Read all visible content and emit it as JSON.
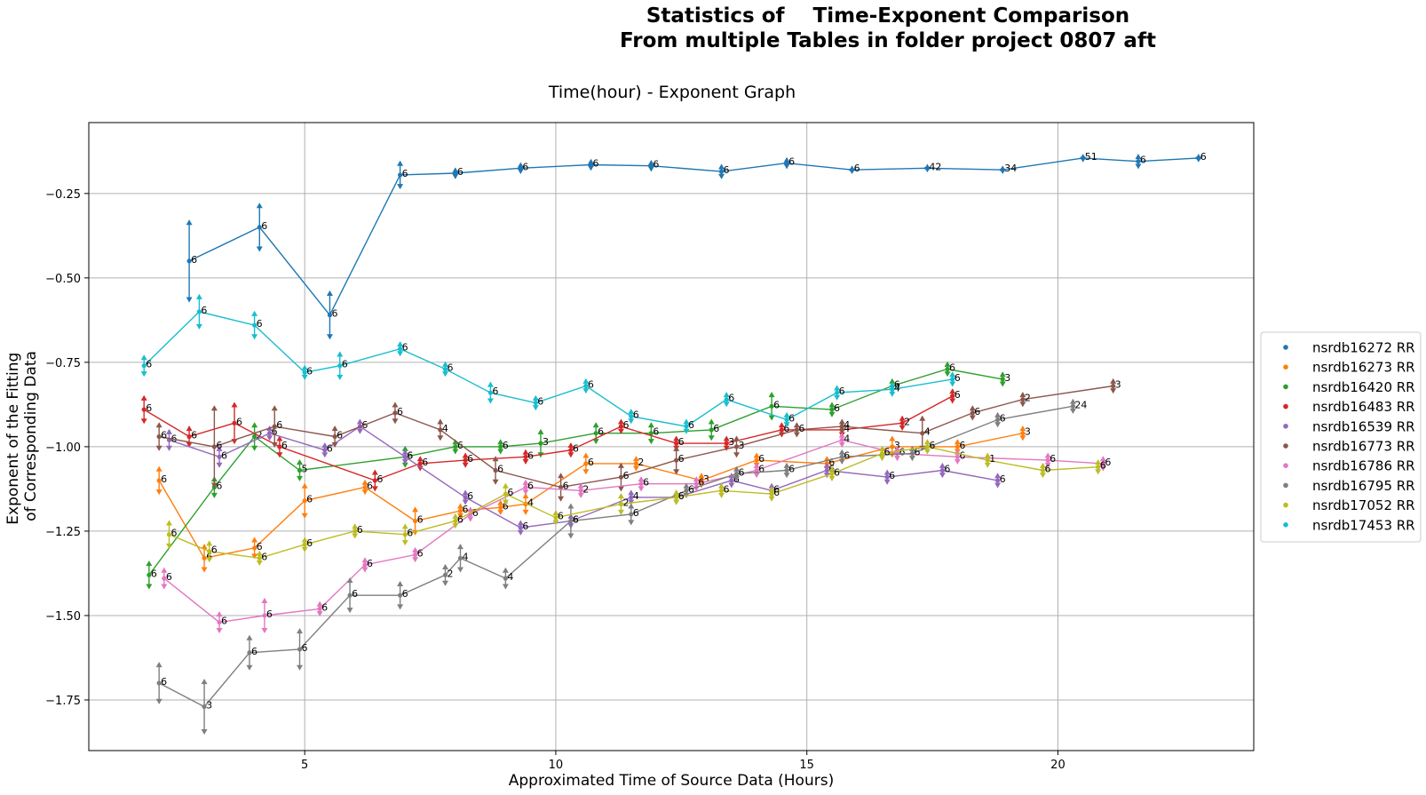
{
  "suptitle": {
    "line1": "Statistics of    Time-Exponent Comparison",
    "line2": "From multiple Tables in folder project 0807 aft"
  },
  "chart_data": {
    "type": "line",
    "title": "Time(hour) - Exponent Graph",
    "xlabel": "Approximated Time of Source Data (Hours)",
    "ylabel": "Exponent of the Fitting\nof Corresponding Data",
    "xlim": [
      0.7,
      23.9
    ],
    "ylim": [
      -1.9,
      -0.04
    ],
    "xticks": [
      5,
      10,
      15,
      20
    ],
    "yticks": [
      -0.25,
      -0.5,
      -0.75,
      -1.0,
      -1.25,
      -1.5,
      -1.75
    ],
    "ytick_labels": [
      "−0.25",
      "−0.50",
      "−0.75",
      "−1.00",
      "−1.25",
      "−1.50",
      "−1.75"
    ],
    "grid": true,
    "legend_position": "right-outside",
    "series": [
      {
        "name": "nsrdb16272 RR",
        "color": "#1f77b4",
        "x": [
          2.7,
          4.1,
          5.5,
          6.9,
          8.0,
          9.3,
          10.7,
          11.9,
          13.3,
          14.6,
          15.9,
          17.4,
          18.9,
          20.5,
          21.6,
          22.8
        ],
        "y": [
          -0.45,
          -0.35,
          -0.61,
          -0.195,
          -0.19,
          -0.175,
          -0.165,
          -0.168,
          -0.185,
          -0.16,
          -0.18,
          -0.175,
          -0.18,
          -0.145,
          -0.155,
          -0.145
        ],
        "err": [
          0.12,
          0.07,
          0.07,
          0.04,
          0.015,
          0.015,
          0.015,
          0.015,
          0.02,
          0.015,
          0.01,
          0.01,
          0.01,
          0.01,
          0.02,
          0.01
        ],
        "labels": [
          "6",
          "6",
          "6",
          "6",
          "6",
          "6",
          "6",
          "6",
          "6",
          "6",
          "6",
          "42",
          "34",
          "51",
          "6",
          "6"
        ]
      },
      {
        "name": "nsrdb16273 RR",
        "color": "#ff7f0e",
        "x": [
          2.1,
          3.0,
          4.0,
          5.0,
          6.2,
          7.2,
          8.1,
          8.9,
          9.4,
          10.6,
          11.6,
          12.9,
          14.0,
          15.4,
          16.7,
          18.0,
          19.3
        ],
        "y": [
          -1.1,
          -1.33,
          -1.3,
          -1.16,
          -1.12,
          -1.22,
          -1.19,
          -1.18,
          -1.17,
          -1.05,
          -1.05,
          -1.1,
          -1.04,
          -1.05,
          -1.0,
          -1.0,
          -0.96
        ],
        "err": [
          0.04,
          0.04,
          0.03,
          0.05,
          0.02,
          0.04,
          0.02,
          0.02,
          0.03,
          0.03,
          0.02,
          0.02,
          0.02,
          0.02,
          0.03,
          0.02,
          0.02
        ],
        "labels": [
          "6",
          "6",
          "6",
          "6",
          "6",
          "6",
          "6",
          "6",
          "4",
          "6",
          "2",
          "3",
          "6",
          "6",
          "3",
          "6",
          "3"
        ]
      },
      {
        "name": "nsrdb16420 RR",
        "color": "#2ca02c",
        "x": [
          1.9,
          3.2,
          4.0,
          4.9,
          7.0,
          8.0,
          8.9,
          9.7,
          10.8,
          11.9,
          13.1,
          14.3,
          15.5,
          16.7,
          17.8,
          18.9
        ],
        "y": [
          -1.38,
          -1.12,
          -0.97,
          -1.07,
          -1.03,
          -1.0,
          -1.0,
          -0.99,
          -0.96,
          -0.96,
          -0.95,
          -0.88,
          -0.89,
          -0.82,
          -0.77,
          -0.8
        ],
        "err": [
          0.04,
          0.03,
          0.04,
          0.03,
          0.03,
          0.02,
          0.02,
          0.04,
          0.03,
          0.03,
          0.03,
          0.04,
          0.02,
          0.02,
          0.02,
          0.02
        ],
        "labels": [
          "6",
          "6",
          "2",
          "5",
          "6",
          "6",
          "6",
          "3",
          "6",
          "6",
          "6",
          "6",
          "6",
          "6",
          "6",
          "3"
        ]
      },
      {
        "name": "nsrdb16483 RR",
        "color": "#d62728",
        "x": [
          1.8,
          2.7,
          3.6,
          4.5,
          6.4,
          7.3,
          8.2,
          9.4,
          10.3,
          11.3,
          12.4,
          13.4,
          14.5,
          15.7,
          16.9,
          17.9
        ],
        "y": [
          -0.89,
          -0.97,
          -0.93,
          -1.0,
          -1.1,
          -1.05,
          -1.04,
          -1.03,
          -1.01,
          -0.94,
          -0.99,
          -0.99,
          -0.95,
          -0.95,
          -0.93,
          -0.85
        ],
        "err": [
          0.04,
          0.03,
          0.06,
          0.03,
          0.03,
          0.02,
          0.02,
          0.02,
          0.02,
          0.02,
          0.02,
          0.02,
          0.02,
          0.02,
          0.02,
          0.02
        ],
        "labels": [
          "6",
          "6",
          "6",
          "6",
          "6",
          "6",
          "6",
          "6",
          "6",
          "6",
          "6",
          "3",
          "6",
          "4",
          "2",
          "6"
        ]
      },
      {
        "name": "nsrdb16539 RR",
        "color": "#9467bd",
        "x": [
          2.3,
          3.3,
          4.3,
          5.4,
          6.1,
          7.0,
          8.2,
          9.3,
          10.3,
          11.5,
          12.4,
          13.5,
          14.3,
          15.4,
          16.6,
          17.7,
          18.8
        ],
        "y": [
          -0.98,
          -1.03,
          -0.96,
          -1.01,
          -0.94,
          -1.03,
          -1.15,
          -1.24,
          -1.22,
          -1.15,
          -1.15,
          -1.1,
          -1.13,
          -1.07,
          -1.09,
          -1.07,
          -1.1
        ],
        "err": [
          0.03,
          0.03,
          0.02,
          0.02,
          0.02,
          0.02,
          0.02,
          0.02,
          0.02,
          0.02,
          0.02,
          0.02,
          0.02,
          0.02,
          0.02,
          0.02,
          0.02
        ],
        "labels": [
          "6",
          "6",
          "6",
          "6",
          "6",
          "6",
          "6",
          "6",
          "6",
          "4",
          "6",
          "6",
          "6",
          "6",
          "6",
          "6",
          "6"
        ]
      },
      {
        "name": "nsrdb16773 RR",
        "color": "#8c564b",
        "x": [
          2.1,
          3.2,
          4.4,
          5.6,
          6.8,
          7.7,
          8.8,
          10.1,
          11.3,
          12.4,
          13.6,
          14.8,
          15.7,
          17.3,
          18.3,
          19.3,
          21.1
        ],
        "y": [
          -0.97,
          -1.0,
          -0.94,
          -0.97,
          -0.9,
          -0.95,
          -1.07,
          -1.12,
          -1.09,
          -1.04,
          -1.0,
          -0.95,
          -0.94,
          -0.96,
          -0.9,
          -0.86,
          -0.82
        ],
        "err": [
          0.04,
          0.12,
          0.06,
          0.03,
          0.03,
          0.03,
          0.04,
          0.04,
          0.04,
          0.04,
          0.03,
          0.02,
          0.02,
          0.05,
          0.02,
          0.02,
          0.02
        ],
        "labels": [
          "6",
          "6",
          "6",
          "6",
          "6",
          "4",
          "6",
          "6",
          "6",
          "6",
          "3",
          "6",
          "4",
          "4",
          "6",
          "2",
          "3"
        ]
      },
      {
        "name": "nsrdb16786 RR",
        "color": "#e377c2",
        "x": [
          2.2,
          3.3,
          4.2,
          5.3,
          6.2,
          7.2,
          8.3,
          9.4,
          10.5,
          11.7,
          12.8,
          14.0,
          15.7,
          16.8,
          18.0,
          19.8,
          20.9
        ],
        "y": [
          -1.39,
          -1.52,
          -1.5,
          -1.48,
          -1.35,
          -1.32,
          -1.2,
          -1.12,
          -1.13,
          -1.11,
          -1.11,
          -1.07,
          -0.98,
          -1.02,
          -1.03,
          -1.04,
          -1.05
        ],
        "err": [
          0.03,
          0.03,
          0.05,
          0.02,
          0.02,
          0.02,
          0.02,
          0.02,
          0.02,
          0.02,
          0.02,
          0.02,
          0.02,
          0.02,
          0.02,
          0.02,
          0.02
        ],
        "labels": [
          "6",
          "6",
          "6",
          "6",
          "6",
          "6",
          "6",
          "6",
          "2",
          "6",
          "6",
          "6",
          "4",
          "6",
          "6",
          "6",
          "6"
        ]
      },
      {
        "name": "nsrdb16795 RR",
        "color": "#7f7f7f",
        "x": [
          2.1,
          3.0,
          3.9,
          4.9,
          5.9,
          6.9,
          7.8,
          8.1,
          9.0,
          10.3,
          11.5,
          12.6,
          13.6,
          14.6,
          15.7,
          17.1,
          18.8,
          20.3
        ],
        "y": [
          -1.7,
          -1.77,
          -1.61,
          -1.6,
          -1.44,
          -1.44,
          -1.38,
          -1.33,
          -1.39,
          -1.22,
          -1.2,
          -1.13,
          -1.08,
          -1.07,
          -1.03,
          -1.02,
          -0.92,
          -0.88
        ],
        "err": [
          0.06,
          0.08,
          0.05,
          0.06,
          0.05,
          0.04,
          0.03,
          0.04,
          0.03,
          0.05,
          0.03,
          0.02,
          0.02,
          0.02,
          0.02,
          0.02,
          0.02,
          0.02
        ],
        "labels": [
          "6",
          "3",
          "6",
          "6",
          "6",
          "6",
          "2",
          "4",
          "4",
          "6",
          "6",
          "6",
          "6",
          "6",
          "6",
          "6",
          "6",
          "24"
        ]
      },
      {
        "name": "nsrdb17052 RR",
        "color": "#bcbd22",
        "x": [
          2.3,
          3.1,
          4.1,
          5.0,
          6.0,
          7.0,
          8.0,
          9.0,
          10.0,
          11.3,
          12.4,
          13.3,
          14.3,
          15.5,
          16.5,
          17.4,
          18.6,
          19.7,
          20.8
        ],
        "y": [
          -1.26,
          -1.31,
          -1.33,
          -1.29,
          -1.25,
          -1.26,
          -1.22,
          -1.14,
          -1.21,
          -1.17,
          -1.15,
          -1.13,
          -1.14,
          -1.08,
          -1.02,
          -1.0,
          -1.04,
          -1.07,
          -1.06
        ],
        "err": [
          0.04,
          0.03,
          0.02,
          0.02,
          0.02,
          0.03,
          0.02,
          0.03,
          0.02,
          0.03,
          0.02,
          0.02,
          0.02,
          0.02,
          0.02,
          0.02,
          0.02,
          0.02,
          0.02
        ],
        "labels": [
          "6",
          "6",
          "6",
          "6",
          "6",
          "6",
          "6",
          "6",
          "6",
          "2",
          "6",
          "6",
          "6",
          "6",
          "6",
          "6",
          "1",
          "6",
          "6"
        ]
      },
      {
        "name": "nsrdb17453 RR",
        "color": "#17becf",
        "x": [
          1.8,
          2.9,
          4.0,
          5.0,
          5.7,
          6.9,
          7.8,
          8.7,
          9.6,
          10.6,
          11.5,
          12.6,
          13.4,
          14.6,
          15.6,
          16.7,
          17.9
        ],
        "y": [
          -0.76,
          -0.6,
          -0.64,
          -0.78,
          -0.76,
          -0.71,
          -0.77,
          -0.84,
          -0.87,
          -0.82,
          -0.91,
          -0.94,
          -0.86,
          -0.92,
          -0.84,
          -0.83,
          -0.8
        ],
        "err": [
          0.03,
          0.05,
          0.04,
          0.02,
          0.04,
          0.02,
          0.02,
          0.03,
          0.02,
          0.02,
          0.02,
          0.02,
          0.02,
          0.02,
          0.02,
          0.02,
          0.02
        ],
        "labels": [
          "6",
          "6",
          "6",
          "6",
          "6",
          "6",
          "6",
          "6",
          "6",
          "6",
          "6",
          "6",
          "6",
          "6",
          "6",
          "4",
          "6"
        ]
      }
    ]
  }
}
